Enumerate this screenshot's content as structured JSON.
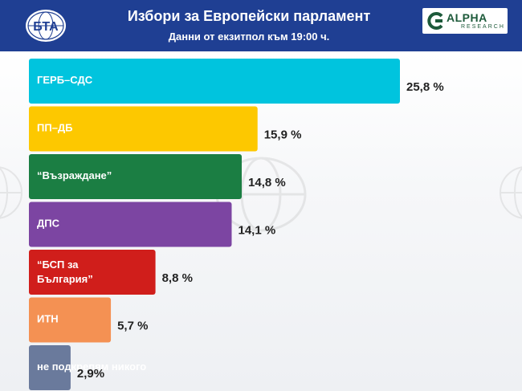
{
  "header": {
    "title": "Избори за Европейски парламент",
    "subtitle": "Данни от екзитпол към 19:00 ч.",
    "agency_logo_text": "БТА",
    "pollster_logo_text": "ALPHA",
    "pollster_logo_subtext": "RESEARCH"
  },
  "colors": {
    "header_bg": "#1f3f93"
  },
  "chart_data": {
    "type": "bar",
    "orientation": "horizontal",
    "title": "",
    "xlabel": "",
    "ylabel": "",
    "xlim": [
      0,
      30
    ],
    "grid": false,
    "legend": "none",
    "categories": [
      "ГЕРБ–СДС",
      "ПП–ДБ",
      "“Възраждане”",
      "ДПС",
      "“БСП за България”",
      "ИТН",
      "не подкрепям никого"
    ],
    "category_lines": [
      [
        "ГЕРБ–СДС"
      ],
      [
        "ПП–ДБ"
      ],
      [
        "“Възраждане”"
      ],
      [
        "ДПС"
      ],
      [
        "“БСП за",
        "България”"
      ],
      [
        "ИТН"
      ],
      [
        "не подкрепям никого"
      ]
    ],
    "values": [
      25.8,
      15.9,
      14.8,
      14.1,
      8.8,
      5.7,
      2.9
    ],
    "value_labels": [
      "25,8 %",
      "15,9 %",
      "14,8 %",
      "14,1 %",
      "8,8 %",
      "5,7 %",
      "2,9%"
    ],
    "bar_colors": [
      "#00c4de",
      "#fdc800",
      "#1b7e43",
      "#7c45a2",
      "#d01e1b",
      "#f49153",
      "#6a7a9c"
    ],
    "value_label_colors": [
      "#111111",
      "#111111",
      "#555555",
      "#555555",
      "#111111",
      "#111111",
      "#111111"
    ]
  }
}
